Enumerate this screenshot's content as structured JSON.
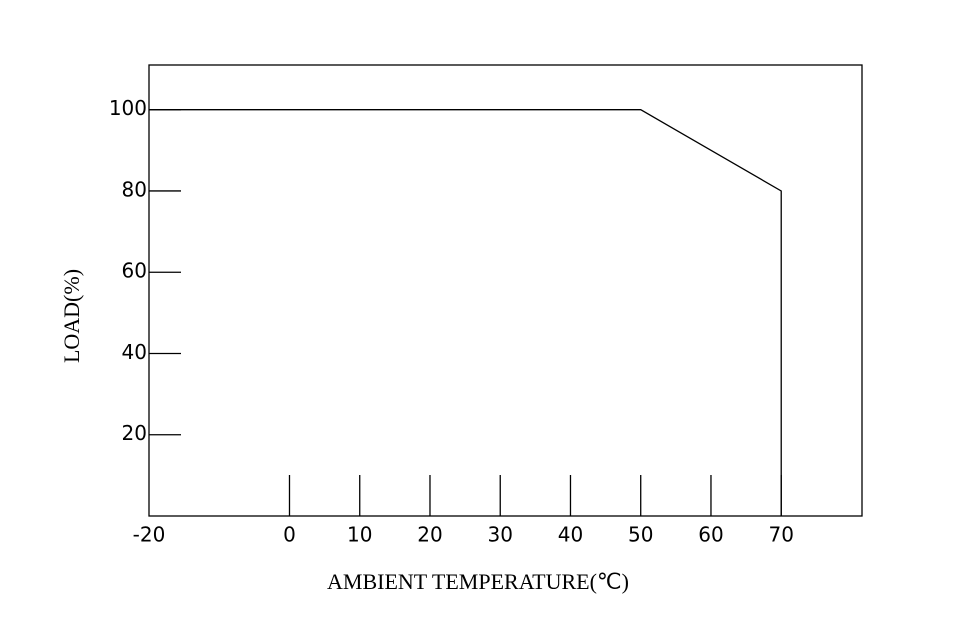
{
  "chart_data": {
    "type": "line",
    "x_label": "AMBIENT TEMPERATURE(℃)",
    "y_label": "LOAD(%)",
    "x": [
      -20,
      50,
      70,
      70
    ],
    "series": [
      {
        "color": "#000000",
        "values": [
          100,
          100,
          80,
          0
        ]
      }
    ],
    "xlim": [
      -20,
      81.5
    ],
    "xticks": [
      -20,
      0,
      10,
      20,
      30,
      40,
      50,
      60,
      70
    ],
    "ylim": [
      0,
      111
    ],
    "yticks": [
      20,
      40,
      60,
      80,
      100
    ],
    "grid": false
  }
}
